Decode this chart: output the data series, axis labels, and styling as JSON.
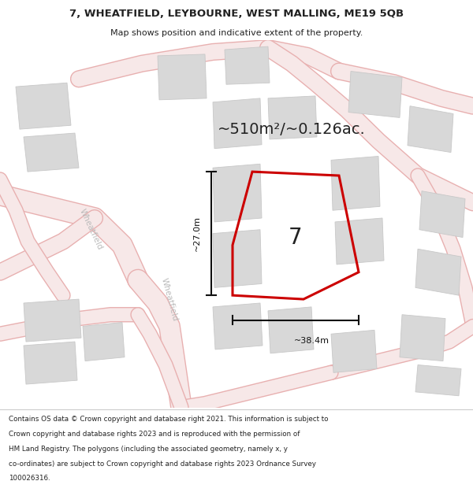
{
  "title_line1": "7, WHEATFIELD, LEYBOURNE, WEST MALLING, ME19 5QB",
  "title_line2": "Map shows position and indicative extent of the property.",
  "area_text": "~510m²/~0.126ac.",
  "property_number": "7",
  "dim_vertical": "~27.0m",
  "dim_horizontal": "~38.4m",
  "footer_lines": [
    "Contains OS data © Crown copyright and database right 2021. This information is subject to",
    "Crown copyright and database rights 2023 and is reproduced with the permission of",
    "HM Land Registry. The polygons (including the associated geometry, namely x, y",
    "co-ordinates) are subject to Crown copyright and database rights 2023 Ordnance Survey",
    "100026316."
  ],
  "map_bg": "#f7f4f4",
  "road_fill": "#f7e8e8",
  "road_outline": "#e8b0b0",
  "building_fill": "#d8d8d8",
  "building_outline": "#c8c8c8",
  "plot_color": "#cc0000",
  "dim_color": "#111111",
  "text_color": "#222222",
  "street_label_color": "#bbbbbb",
  "header_bg": "#ffffff",
  "footer_bg": "#ffffff",
  "divider_color": "#cccccc",
  "road_lw": 1.0,
  "building_lw": 0.5
}
